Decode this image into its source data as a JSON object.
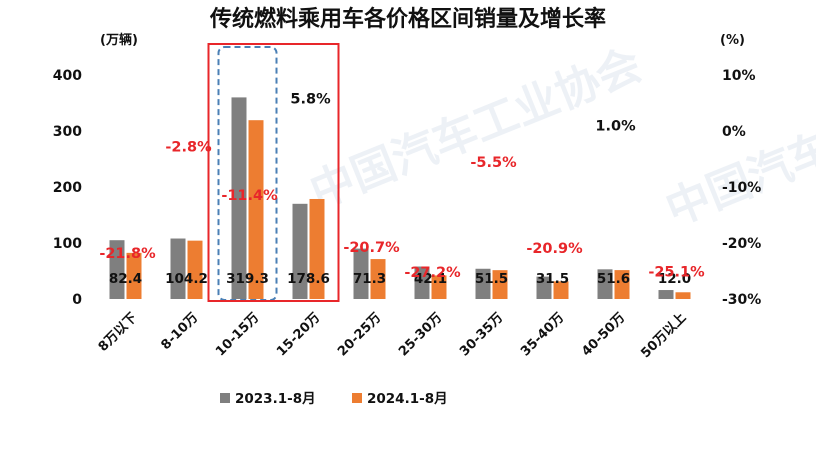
{
  "chart_data": {
    "type": "bar",
    "title": "传统燃料乘用车各价格区间销量及增长率",
    "left_unit": "(万辆)",
    "right_unit": "(%)",
    "categories": [
      "8万以下",
      "8-10万",
      "10-15万",
      "15-20万",
      "20-25万",
      "25-30万",
      "30-35万",
      "35-40万",
      "40-50万",
      "50万以上"
    ],
    "series": [
      {
        "name": "2023.1-8月",
        "color": "#7f7f7f",
        "values": [
          105,
          108,
          360,
          170,
          90,
          58,
          54,
          40,
          53,
          16
        ]
      },
      {
        "name": "2024.1-8月",
        "color": "#ed7d31",
        "values": [
          82.4,
          104.2,
          319.3,
          178.6,
          71.3,
          42.1,
          51.5,
          31.5,
          51.6,
          12.0
        ]
      }
    ],
    "value_labels": [
      "82.4",
      "104.2",
      "319.3",
      "178.6",
      "71.3",
      "42.1",
      "51.5",
      "31.5",
      "51.6",
      "12.0"
    ],
    "growth_rate": [
      -21.8,
      -2.8,
      -11.4,
      5.8,
      -20.7,
      -27.2,
      -5.5,
      -20.9,
      1.0,
      -25.1
    ],
    "growth_labels": [
      "-21.8%",
      "-2.8%",
      "-11.4%",
      "5.8%",
      "-20.7%",
      "-27.2%",
      "-5.5%",
      "-20.9%",
      "1.0%",
      "-25.1%"
    ],
    "left_axis": {
      "ylim": [
        0,
        400
      ],
      "ticks": [
        "0",
        "100",
        "200",
        "300",
        "400"
      ]
    },
    "right_axis": {
      "ylim": [
        -30,
        10
      ],
      "ticks": [
        "-30%",
        "-20%",
        "-10%",
        "0%",
        "10%"
      ]
    },
    "negative_color": "#e8262a",
    "positive_color": "#111111",
    "highlight_category": "10-15万",
    "highlight_box_color": "#e8262a",
    "highlight_dash_color": "#4a7fb5",
    "legend_position": "bottom",
    "grid": false,
    "watermark": "中国汽车工业协会"
  }
}
